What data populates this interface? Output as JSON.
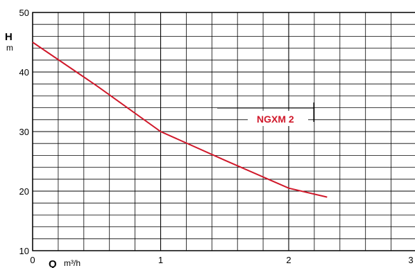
{
  "chart_data": {
    "type": "line",
    "ylabel": "H",
    "ylabel_unit": "m",
    "xlabel": "Q",
    "xlabel_unit": "m³/h",
    "xlim": [
      0,
      3
    ],
    "ylim": [
      10,
      50
    ],
    "x_ticks": [
      "0",
      "1",
      "2",
      "3"
    ],
    "y_ticks": [
      "10",
      "20",
      "30",
      "40",
      "50"
    ],
    "grid": true,
    "series": [
      {
        "name": "NGXM 2",
        "color": "#d0182a",
        "points": [
          {
            "x": 0,
            "y": 45
          },
          {
            "x": 0.5,
            "y": 37.7
          },
          {
            "x": 1.0,
            "y": 30.0
          },
          {
            "x": 1.5,
            "y": 25.2
          },
          {
            "x": 2.0,
            "y": 20.5
          },
          {
            "x": 2.3,
            "y": 19.0
          }
        ]
      }
    ]
  }
}
